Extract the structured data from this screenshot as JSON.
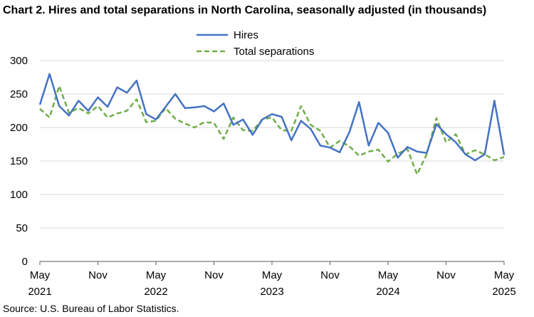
{
  "chart_data": {
    "type": "line",
    "title": "Chart 2. Hires and total separations in North Carolina, seasonally adjusted (in thousands)",
    "source": "Source: U.S. Bureau of Labor Statistics.",
    "xlabel": "",
    "ylabel": "",
    "ylim": [
      0,
      300
    ],
    "yticks": [
      0,
      50,
      100,
      150,
      200,
      250,
      300
    ],
    "grid": true,
    "legend": "top-center",
    "x": [
      "2021-05",
      "2021-06",
      "2021-07",
      "2021-08",
      "2021-09",
      "2021-10",
      "2021-11",
      "2021-12",
      "2022-01",
      "2022-02",
      "2022-03",
      "2022-04",
      "2022-05",
      "2022-06",
      "2022-07",
      "2022-08",
      "2022-09",
      "2022-10",
      "2022-11",
      "2022-12",
      "2023-01",
      "2023-02",
      "2023-03",
      "2023-04",
      "2023-05",
      "2023-06",
      "2023-07",
      "2023-08",
      "2023-09",
      "2023-10",
      "2023-11",
      "2023-12",
      "2024-01",
      "2024-02",
      "2024-03",
      "2024-04",
      "2024-05",
      "2024-06",
      "2024-07",
      "2024-08",
      "2024-09",
      "2024-10",
      "2024-11",
      "2024-12",
      "2025-01",
      "2025-02",
      "2025-03",
      "2025-04",
      "2025-05"
    ],
    "x_tick_labels": [
      {
        "index": 0,
        "month": "May",
        "year": "2021"
      },
      {
        "index": 6,
        "month": "Nov",
        "year": ""
      },
      {
        "index": 12,
        "month": "May",
        "year": "2022"
      },
      {
        "index": 18,
        "month": "Nov",
        "year": ""
      },
      {
        "index": 24,
        "month": "May",
        "year": "2023"
      },
      {
        "index": 30,
        "month": "Nov",
        "year": ""
      },
      {
        "index": 36,
        "month": "May",
        "year": "2024"
      },
      {
        "index": 42,
        "month": "Nov",
        "year": ""
      },
      {
        "index": 48,
        "month": "May",
        "year": "2025"
      }
    ],
    "series": [
      {
        "name": "Hires",
        "color": "#4472C4",
        "style": "solid",
        "values": [
          234,
          280,
          232,
          218,
          240,
          225,
          245,
          231,
          260,
          252,
          270,
          220,
          212,
          231,
          250,
          229,
          230,
          232,
          224,
          236,
          204,
          212,
          189,
          212,
          220,
          216,
          181,
          210,
          198,
          173,
          170,
          163,
          193,
          238,
          173,
          207,
          192,
          155,
          171,
          164,
          162,
          205,
          190,
          178,
          160,
          151,
          160,
          240,
          159
        ]
      },
      {
        "name": "Total separations",
        "color": "#70AD47",
        "style": "dashed",
        "values": [
          228,
          215,
          262,
          222,
          229,
          221,
          232,
          215,
          221,
          225,
          242,
          208,
          210,
          229,
          213,
          206,
          200,
          208,
          207,
          183,
          215,
          196,
          195,
          212,
          215,
          196,
          195,
          232,
          204,
          195,
          170,
          180,
          172,
          158,
          164,
          167,
          149,
          161,
          168,
          130,
          160,
          214,
          178,
          190,
          160,
          166,
          160,
          151,
          156
        ]
      }
    ]
  }
}
